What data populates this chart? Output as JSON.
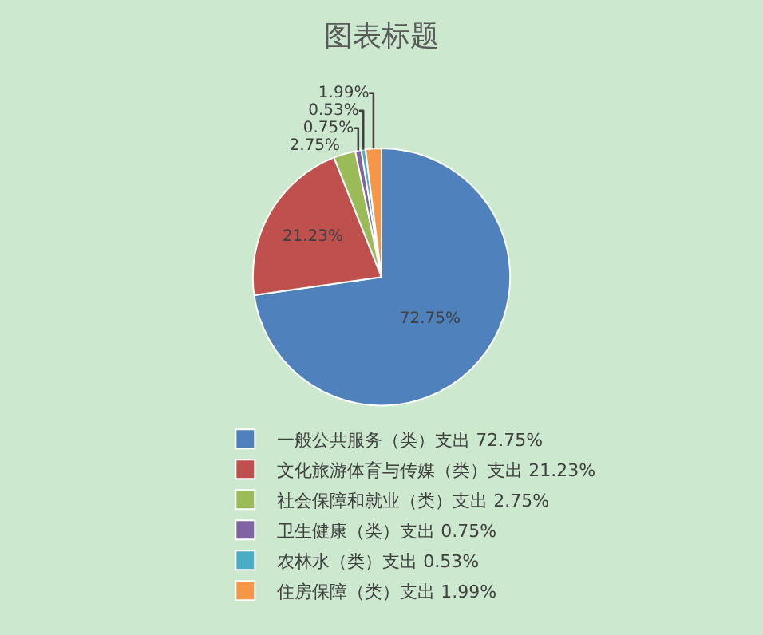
{
  "chart_data": {
    "type": "pie",
    "title": "图表标题",
    "categories": [
      "一般公共服务（类）支出 72.75%",
      "文化旅游体育与传媒（类）支出 21.23%",
      "社会保障和就业（类）支出 2.75%",
      "卫生健康（类）支出 0.75%",
      "农林水（类）支出 0.53%",
      "住房保障（类）支出 1.99%"
    ],
    "values": [
      72.75,
      21.23,
      2.75,
      0.75,
      0.53,
      1.99
    ],
    "colors": [
      "#4f81bd",
      "#c0504d",
      "#9bbb59",
      "#8064a2",
      "#4bacc6",
      "#f79646"
    ],
    "value_labels": [
      "72.75%",
      "21.23%",
      "2.75%",
      "0.75%",
      "0.53%",
      "1.99%"
    ],
    "legend": "bottom"
  }
}
